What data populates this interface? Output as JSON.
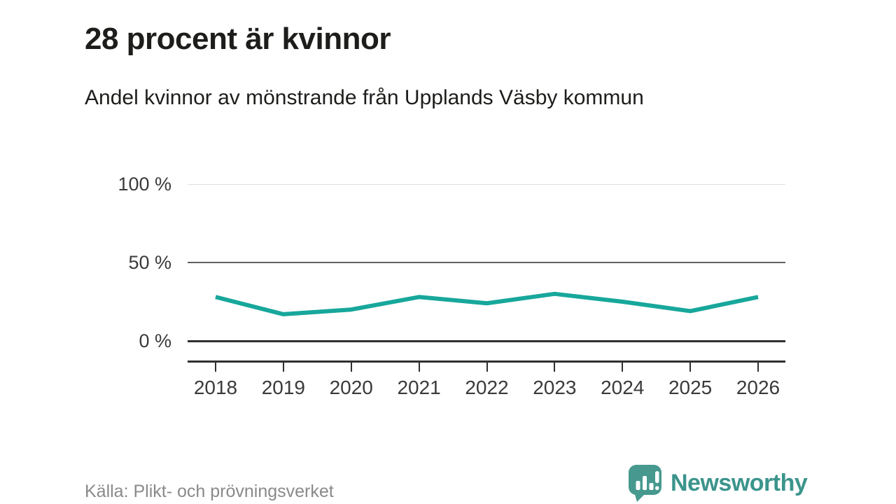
{
  "header": {
    "title": "28 procent är kvinnor",
    "subtitle": "Andel kvinnor av mönstrande från Upplands Väsby kommun"
  },
  "footer": {
    "source": "Källa: Plikt- och prövningsverket",
    "brand": "Newsworthy",
    "brand_icon": "newsworthy-speech-bubble-chart-icon"
  },
  "colors": {
    "line": "#17a79b",
    "brand_teal": "#47998f",
    "grid_light": "#e0e0e0",
    "grid_mid": "#5f5f5f",
    "axis_dark": "#303030",
    "heading_text": "#1d1d1b",
    "axis_text": "#3a3a3a",
    "source_text": "#8a8a8a"
  },
  "chart_data": {
    "type": "line",
    "title": "28 procent är kvinnor",
    "subtitle": "Andel kvinnor av mönstrande från Upplands Väsby kommun",
    "categories": [
      "2018",
      "2019",
      "2020",
      "2021",
      "2022",
      "2023",
      "2024",
      "2025",
      "2026"
    ],
    "series": [
      {
        "name": "Andel kvinnor av mönstrande",
        "values": [
          28,
          17,
          20,
          28,
          24,
          30,
          25,
          19,
          28
        ],
        "color": "#17a79b"
      }
    ],
    "unit": "%",
    "ylim": [
      0,
      100
    ],
    "yticks": [
      {
        "value": 0,
        "label": "0 %"
      },
      {
        "value": 50,
        "label": "50 %"
      },
      {
        "value": 100,
        "label": "100 %"
      }
    ],
    "grid": "horizontal",
    "legend": "none",
    "xlabel": "",
    "ylabel": ""
  }
}
